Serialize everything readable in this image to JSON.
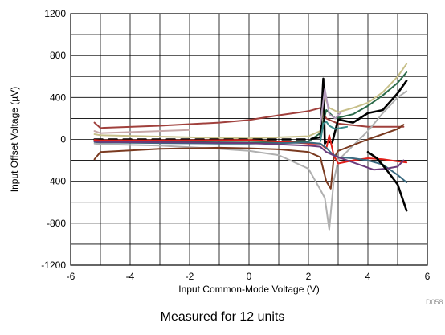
{
  "chart_data": {
    "type": "line",
    "xlabel": "Input Common-Mode Voltage (V)",
    "ylabel": "Input Offset Voltage (µV)",
    "xlim": [
      -6,
      6
    ],
    "ylim": [
      -1200,
      1200
    ],
    "x_ticks": [
      "-6",
      "-4",
      "-2",
      "0",
      "2",
      "4",
      "6"
    ],
    "y_ticks": [
      "1200",
      "800",
      "400",
      "0",
      "-400",
      "-800",
      "-1200"
    ],
    "grid": true,
    "code": "D058",
    "series": [
      {
        "color": "#a0403c",
        "points": [
          [
            -5.2,
            160
          ],
          [
            -5.0,
            110
          ],
          [
            -3,
            130
          ],
          [
            -1,
            160
          ],
          [
            0,
            185
          ],
          [
            1,
            230
          ],
          [
            2,
            270
          ],
          [
            2.4,
            300
          ],
          [
            2.6,
            200
          ],
          [
            3,
            150
          ],
          [
            4,
            120
          ],
          [
            5,
            120
          ],
          [
            5.2,
            120
          ]
        ]
      },
      {
        "color": "#c8c08a",
        "points": [
          [
            -5.2,
            50
          ],
          [
            -5.0,
            40
          ],
          [
            -2,
            20
          ],
          [
            0,
            10
          ],
          [
            2,
            30
          ],
          [
            2.4,
            80
          ],
          [
            2.55,
            400
          ],
          [
            2.7,
            300
          ],
          [
            3,
            260
          ],
          [
            3.5,
            300
          ],
          [
            4,
            350
          ],
          [
            4.5,
            450
          ],
          [
            5,
            600
          ],
          [
            5.3,
            720
          ]
        ]
      },
      {
        "color": "#2c6a4a",
        "points": [
          [
            -5.2,
            -10
          ],
          [
            -5.0,
            -20
          ],
          [
            -2,
            -25
          ],
          [
            0,
            -30
          ],
          [
            2,
            -20
          ],
          [
            2.4,
            60
          ],
          [
            2.6,
            280
          ],
          [
            2.9,
            200
          ],
          [
            3.5,
            240
          ],
          [
            4,
            320
          ],
          [
            4.5,
            420
          ],
          [
            5,
            540
          ],
          [
            5.3,
            640
          ]
        ]
      },
      {
        "color": "#000000",
        "dashed": true,
        "points": [
          [
            -5.2,
            0
          ],
          [
            -5.0,
            0
          ],
          [
            -3,
            0
          ],
          [
            -1,
            0
          ],
          [
            0,
            0
          ],
          [
            1,
            0
          ],
          [
            2,
            0
          ],
          [
            2.4,
            20
          ]
        ]
      },
      {
        "color": "#000000",
        "points": [
          [
            2.4,
            20
          ],
          [
            2.5,
            580
          ],
          [
            2.55,
            -40
          ],
          [
            2.6,
            -20
          ],
          [
            2.8,
            -30
          ],
          [
            3,
            190
          ],
          [
            3.5,
            160
          ],
          [
            4,
            250
          ],
          [
            4.5,
            280
          ],
          [
            5,
            440
          ],
          [
            5.3,
            560
          ]
        ]
      },
      {
        "color": "#b0b0b0",
        "points": [
          [
            -5.2,
            -40
          ],
          [
            -5,
            -45
          ],
          [
            -3,
            -60
          ],
          [
            -1,
            -90
          ],
          [
            0,
            -110
          ],
          [
            1,
            -150
          ],
          [
            2,
            -280
          ],
          [
            2.4,
            -480
          ],
          [
            2.55,
            -560
          ],
          [
            2.7,
            -860
          ],
          [
            2.85,
            -400
          ],
          [
            3,
            -200
          ],
          [
            3.5,
            -60
          ],
          [
            4,
            80
          ],
          [
            4.5,
            250
          ],
          [
            5,
            400
          ],
          [
            5.3,
            460
          ]
        ]
      },
      {
        "color": "#7a3a20",
        "points": [
          [
            -5.2,
            -190
          ],
          [
            -5.0,
            -120
          ],
          [
            -3,
            -90
          ],
          [
            -1,
            -80
          ],
          [
            0,
            -85
          ],
          [
            1,
            -95
          ],
          [
            2,
            -120
          ],
          [
            2.4,
            -170
          ],
          [
            2.6,
            -400
          ],
          [
            2.75,
            -470
          ],
          [
            2.85,
            -180
          ],
          [
            3,
            -110
          ],
          [
            4,
            0
          ],
          [
            5,
            100
          ],
          [
            5.2,
            140
          ]
        ]
      },
      {
        "color": "#e0201a",
        "points": [
          [
            -5.2,
            -5
          ],
          [
            -5,
            -10
          ],
          [
            -3,
            -10
          ],
          [
            -1,
            -8
          ],
          [
            0,
            -5
          ],
          [
            1,
            -20
          ],
          [
            2,
            -40
          ],
          [
            2.4,
            -40
          ],
          [
            2.6,
            -90
          ],
          [
            2.7,
            40
          ],
          [
            2.85,
            -150
          ],
          [
            3,
            -230
          ],
          [
            3.5,
            -200
          ],
          [
            4,
            -180
          ],
          [
            4.5,
            -190
          ],
          [
            5,
            -210
          ],
          [
            5.3,
            -220
          ]
        ]
      },
      {
        "color": "#3a6a80",
        "points": [
          [
            -5.2,
            -25
          ],
          [
            -5,
            -30
          ],
          [
            -3,
            -35
          ],
          [
            -1,
            -40
          ],
          [
            0,
            -40
          ],
          [
            1,
            -35
          ],
          [
            2,
            -30
          ],
          [
            2.4,
            -40
          ],
          [
            2.6,
            -80
          ],
          [
            2.8,
            -140
          ],
          [
            3,
            -170
          ],
          [
            3.5,
            -180
          ],
          [
            4,
            -200
          ],
          [
            4.5,
            -240
          ],
          [
            5,
            -340
          ],
          [
            5.3,
            -410
          ]
        ]
      },
      {
        "color": "#6a3a7a",
        "points": [
          [
            -5.2,
            -20
          ],
          [
            -5,
            -25
          ],
          [
            -2,
            -30
          ],
          [
            0,
            -35
          ],
          [
            2,
            -60
          ],
          [
            2.4,
            -70
          ],
          [
            2.6,
            -120
          ],
          [
            2.9,
            -160
          ],
          [
            3.3,
            -200
          ],
          [
            3.8,
            -250
          ],
          [
            4.2,
            -290
          ],
          [
            4.6,
            -280
          ],
          [
            5,
            -260
          ],
          [
            5.2,
            -200
          ]
        ]
      },
      {
        "color": "#000000",
        "points": [
          [
            4.0,
            -120
          ],
          [
            4.3,
            -180
          ],
          [
            4.6,
            -280
          ],
          [
            5,
            -430
          ],
          [
            5.3,
            -680
          ]
        ]
      },
      {
        "color": "#3a8a8a",
        "points": [
          [
            2.4,
            -20
          ],
          [
            2.5,
            150
          ],
          [
            2.6,
            170
          ],
          [
            2.7,
            130
          ],
          [
            2.9,
            100
          ],
          [
            3.3,
            120
          ]
        ]
      },
      {
        "color": "#b49cbc",
        "points": [
          [
            2.4,
            140
          ],
          [
            2.55,
            480
          ],
          [
            2.7,
            240
          ],
          [
            2.9,
            200
          ],
          [
            3.1,
            260
          ]
        ]
      },
      {
        "color": "#c8a8a8",
        "points": [
          [
            -5.2,
            80
          ],
          [
            -5.0,
            60
          ],
          [
            -4,
            70
          ],
          [
            -3,
            80
          ],
          [
            -2,
            90
          ]
        ]
      }
    ],
    "caption": "Measured for 12 units"
  }
}
